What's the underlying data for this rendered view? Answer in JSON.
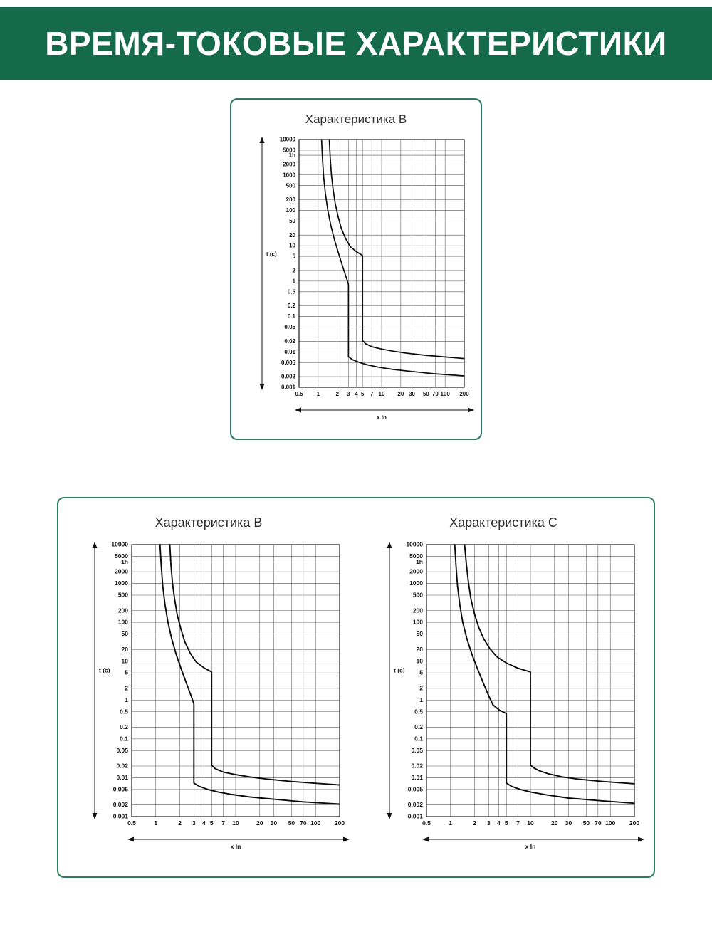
{
  "header": {
    "title": "ВРЕМЯ-ТОКОВЫЕ ХАРАКТЕРИСТИКИ"
  },
  "colors": {
    "banner_bg": "#156a4c",
    "banner_text": "#ffffff",
    "card_border": "#2b7d5b",
    "grid": "#555555",
    "curve": "#0b0b0b",
    "text": "#111111"
  },
  "curve_sets": {
    "B": {
      "upper": [
        [
          1.5,
          10000
        ],
        [
          1.55,
          3000
        ],
        [
          1.62,
          1000
        ],
        [
          1.72,
          400
        ],
        [
          1.85,
          160
        ],
        [
          2.05,
          70
        ],
        [
          2.3,
          32
        ],
        [
          2.7,
          16
        ],
        [
          3.2,
          9.5
        ],
        [
          4,
          6.8
        ],
        [
          5,
          5.3
        ],
        [
          5,
          0.021
        ],
        [
          5.6,
          0.017
        ],
        [
          7,
          0.014
        ],
        [
          10,
          0.012
        ],
        [
          15,
          0.0105
        ],
        [
          25,
          0.0092
        ],
        [
          50,
          0.008
        ],
        [
          100,
          0.0072
        ],
        [
          200,
          0.0065
        ]
      ],
      "lower": [
        [
          1.13,
          10000
        ],
        [
          1.17,
          3000
        ],
        [
          1.22,
          900
        ],
        [
          1.3,
          300
        ],
        [
          1.42,
          100
        ],
        [
          1.58,
          38
        ],
        [
          1.8,
          15
        ],
        [
          2.1,
          6
        ],
        [
          2.45,
          2.5
        ],
        [
          2.8,
          1.2
        ],
        [
          3,
          0.8
        ],
        [
          3,
          0.0073
        ],
        [
          3.5,
          0.006
        ],
        [
          4.5,
          0.005
        ],
        [
          6,
          0.0043
        ],
        [
          9,
          0.0037
        ],
        [
          15,
          0.0032
        ],
        [
          30,
          0.0028
        ],
        [
          70,
          0.0024
        ],
        [
          200,
          0.0021
        ]
      ]
    },
    "C": {
      "upper": [
        [
          1.5,
          10000
        ],
        [
          1.58,
          3000
        ],
        [
          1.68,
          1000
        ],
        [
          1.8,
          400
        ],
        [
          2.0,
          160
        ],
        [
          2.25,
          75
        ],
        [
          2.6,
          38
        ],
        [
          3.1,
          21
        ],
        [
          3.8,
          13
        ],
        [
          5,
          9
        ],
        [
          7,
          6.6
        ],
        [
          10,
          5.3
        ],
        [
          10,
          0.021
        ],
        [
          11,
          0.018
        ],
        [
          13,
          0.015
        ],
        [
          17,
          0.0125
        ],
        [
          25,
          0.0105
        ],
        [
          40,
          0.0092
        ],
        [
          80,
          0.008
        ],
        [
          200,
          0.007
        ]
      ],
      "lower": [
        [
          1.13,
          10000
        ],
        [
          1.17,
          3000
        ],
        [
          1.22,
          900
        ],
        [
          1.3,
          300
        ],
        [
          1.42,
          100
        ],
        [
          1.6,
          38
        ],
        [
          1.85,
          15
        ],
        [
          2.2,
          6
        ],
        [
          2.6,
          2.6
        ],
        [
          3.0,
          1.3
        ],
        [
          3.4,
          0.75
        ],
        [
          4.1,
          0.55
        ],
        [
          5,
          0.45
        ],
        [
          5,
          0.0073
        ],
        [
          5.8,
          0.006
        ],
        [
          7.5,
          0.005
        ],
        [
          10,
          0.0043
        ],
        [
          16,
          0.0036
        ],
        [
          30,
          0.003
        ],
        [
          70,
          0.0026
        ],
        [
          200,
          0.0022
        ]
      ]
    }
  },
  "chart_data": [
    {
      "id": "chart-top-b",
      "type": "line",
      "title": "Характеристика B",
      "curve_set": "B",
      "xlabel": "x In",
      "ylabel": "t (c)",
      "x_scale": "log",
      "y_scale": "log",
      "xlim": [
        0.5,
        200
      ],
      "ylim": [
        0.001,
        10000
      ],
      "grid": true,
      "legend": "none",
      "x_ticks": [
        0.5,
        1,
        2,
        3,
        4,
        5,
        7,
        10,
        20,
        30,
        50,
        70,
        100,
        200
      ],
      "x_tick_labels": [
        "0.5",
        "1",
        "2",
        "3",
        "4",
        "5",
        "7",
        "10",
        "20",
        "30",
        "50",
        "70",
        "100",
        "200"
      ],
      "y_ticks": [
        10000,
        5000,
        3600,
        2000,
        1000,
        500,
        200,
        100,
        50,
        20,
        10,
        5,
        2,
        1,
        0.5,
        0.2,
        0.1,
        0.05,
        0.02,
        0.01,
        0.005,
        0.002,
        0.001
      ],
      "y_tick_labels": [
        "10000",
        "5000",
        "1h",
        "2000",
        "1000",
        "500",
        "200",
        "100",
        "50",
        "20",
        "10",
        "5",
        "2",
        "1",
        "0.5",
        "0.2",
        "0.1",
        "0.05",
        "0.02",
        "0.01",
        "0.005",
        "0.002",
        "0.001"
      ]
    },
    {
      "id": "chart-bottom-b",
      "type": "line",
      "title": "Характеристика B",
      "curve_set": "B",
      "xlabel": "x In",
      "ylabel": "t (c)",
      "x_scale": "log",
      "y_scale": "log",
      "xlim": [
        0.5,
        200
      ],
      "ylim": [
        0.001,
        10000
      ],
      "grid": true,
      "legend": "none",
      "x_ticks": [
        0.5,
        1,
        2,
        3,
        4,
        5,
        7,
        10,
        20,
        30,
        50,
        70,
        100,
        200
      ],
      "x_tick_labels": [
        "0.5",
        "1",
        "2",
        "3",
        "4",
        "5",
        "7",
        "10",
        "20",
        "30",
        "50",
        "70",
        "100",
        "200"
      ],
      "y_ticks": [
        10000,
        5000,
        3600,
        2000,
        1000,
        500,
        200,
        100,
        50,
        20,
        10,
        5,
        2,
        1,
        0.5,
        0.2,
        0.1,
        0.05,
        0.02,
        0.01,
        0.005,
        0.002,
        0.001
      ],
      "y_tick_labels": [
        "10000",
        "5000",
        "1h",
        "2000",
        "1000",
        "500",
        "200",
        "100",
        "50",
        "20",
        "10",
        "5",
        "2",
        "1",
        "0.5",
        "0.2",
        "0.1",
        "0.05",
        "0.02",
        "0.01",
        "0.005",
        "0.002",
        "0.001"
      ]
    },
    {
      "id": "chart-bottom-c",
      "type": "line",
      "title": "Характеристика C",
      "curve_set": "C",
      "xlabel": "x In",
      "ylabel": "t (c)",
      "x_scale": "log",
      "y_scale": "log",
      "xlim": [
        0.5,
        200
      ],
      "ylim": [
        0.001,
        10000
      ],
      "grid": true,
      "legend": "none",
      "x_ticks": [
        0.5,
        1,
        2,
        3,
        4,
        5,
        7,
        10,
        20,
        30,
        50,
        70,
        100,
        200
      ],
      "x_tick_labels": [
        "0.5",
        "1",
        "2",
        "3",
        "4",
        "5",
        "7",
        "10",
        "20",
        "30",
        "50",
        "70",
        "100",
        "200"
      ],
      "y_ticks": [
        10000,
        5000,
        3600,
        2000,
        1000,
        500,
        200,
        100,
        50,
        20,
        10,
        5,
        2,
        1,
        0.5,
        0.2,
        0.1,
        0.05,
        0.02,
        0.01,
        0.005,
        0.002,
        0.001
      ],
      "y_tick_labels": [
        "10000",
        "5000",
        "1h",
        "2000",
        "1000",
        "500",
        "200",
        "100",
        "50",
        "20",
        "10",
        "5",
        "2",
        "1",
        "0.5",
        "0.2",
        "0.1",
        "0.05",
        "0.02",
        "0.01",
        "0.005",
        "0.002",
        "0.001"
      ]
    }
  ]
}
